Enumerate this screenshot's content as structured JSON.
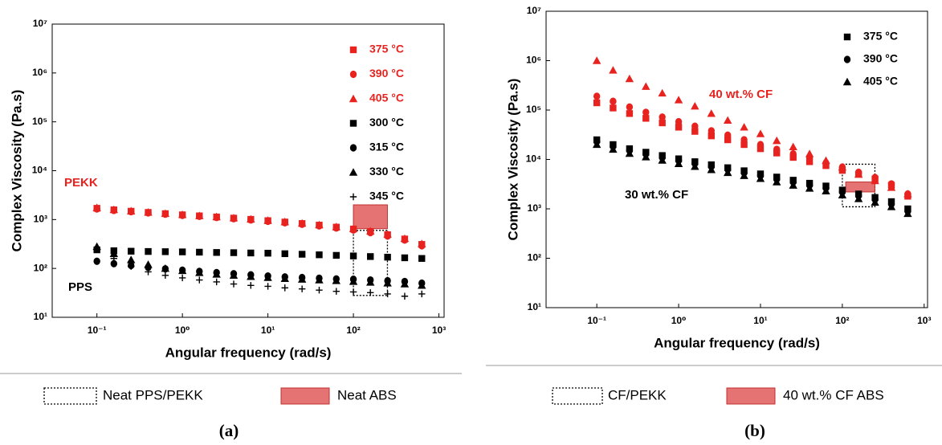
{
  "chart_data": [
    {
      "type": "scatter",
      "caption": "(a)",
      "x_label": "Angular frequency (rad/s)",
      "y_label": "Complex Viscosity (Pa.s)",
      "log_x": true,
      "log_y": true,
      "xlim": [
        0.03,
        1150
      ],
      "ylim": [
        10,
        10000000
      ],
      "xticks": [
        {
          "value": 0.1,
          "label": "10⁻¹"
        },
        {
          "value": 1,
          "label": "10⁰"
        },
        {
          "value": 10,
          "label": "10¹"
        },
        {
          "value": 100,
          "label": "10²"
        },
        {
          "value": 1000,
          "label": "10³"
        }
      ],
      "yticks": [
        {
          "value": 10,
          "label": "10¹"
        },
        {
          "value": 100,
          "label": "10²"
        },
        {
          "value": 1000,
          "label": "10³"
        },
        {
          "value": 10000,
          "label": "10⁴"
        },
        {
          "value": 100000,
          "label": "10⁵"
        },
        {
          "value": 1000000,
          "label": "10⁶"
        },
        {
          "value": 10000000,
          "label": "10⁷"
        }
      ],
      "x": [
        0.1,
        0.158,
        0.251,
        0.398,
        0.631,
        1,
        1.58,
        2.51,
        3.98,
        6.31,
        10,
        15.8,
        25.1,
        39.8,
        63.1,
        100,
        158,
        251,
        398,
        631
      ],
      "legend": "upper right",
      "series": [
        {
          "name": "375 °C",
          "color": "#e8231f",
          "marker": "square",
          "values": [
            1700,
            1580,
            1480,
            1400,
            1320,
            1250,
            1190,
            1130,
            1070,
            1010,
            950,
            890,
            830,
            770,
            700,
            640,
            570,
            490,
            400,
            310
          ]
        },
        {
          "name": "390 °C",
          "color": "#e8231f",
          "marker": "circle",
          "values": [
            1650,
            1540,
            1450,
            1370,
            1290,
            1220,
            1160,
            1100,
            1040,
            980,
            920,
            860,
            800,
            740,
            670,
            610,
            540,
            460,
            380,
            290
          ]
        },
        {
          "name": "405 °C",
          "color": "#e8231f",
          "marker": "triangle",
          "values": [
            1750,
            1600,
            1500,
            1410,
            1330,
            1260,
            1200,
            1140,
            1080,
            1020,
            960,
            900,
            840,
            780,
            710,
            650,
            580,
            500,
            410,
            320
          ]
        },
        {
          "name": "300 °C",
          "color": "#000000",
          "marker": "square",
          "values": [
            240,
            230,
            225,
            222,
            220,
            218,
            215,
            212,
            210,
            207,
            205,
            200,
            195,
            190,
            185,
            180,
            175,
            170,
            165,
            160
          ]
        },
        {
          "name": "315 °C",
          "color": "#000000",
          "marker": "circle",
          "values": [
            140,
            125,
            115,
            105,
            98,
            92,
            87,
            82,
            78,
            74,
            70,
            67,
            65,
            63,
            61,
            60,
            58,
            56,
            54,
            50
          ]
        },
        {
          "name": "330 °C",
          "color": "#000000",
          "marker": "triangle",
          "values": [
            280,
            200,
            150,
            120,
            100,
            90,
            82,
            76,
            72,
            68,
            65,
            62,
            60,
            58,
            56,
            54,
            52,
            50,
            48,
            45
          ]
        },
        {
          "name": "345 °C",
          "color": "#000000",
          "marker": "plus",
          "values": [
            250,
            160,
            110,
            85,
            72,
            64,
            58,
            53,
            48,
            45,
            43,
            40,
            38,
            36,
            34,
            33,
            32,
            30,
            27,
            30
          ]
        }
      ],
      "annotations": [
        {
          "text": "PEKK",
          "color": "#e8231f"
        },
        {
          "text": "PPS",
          "color": "#000000"
        }
      ],
      "regions": [
        {
          "label": "Neat PPS/PEKK",
          "style": "dotted",
          "color": "#000000",
          "x": [
            100,
            250
          ],
          "y": [
            28,
            600
          ]
        },
        {
          "label": "Neat ABS",
          "style": "filled",
          "color": "#e05a5a",
          "x": [
            100,
            250
          ],
          "y": [
            650,
            2000
          ]
        }
      ]
    },
    {
      "type": "scatter",
      "caption": "(b)",
      "x_label": "Angular frequency (rad/s)",
      "y_label": "Complex Viscosity (Pa.s)",
      "log_x": true,
      "log_y": true,
      "xlim": [
        0.024,
        1100
      ],
      "ylim": [
        10,
        10000000
      ],
      "xticks": [
        {
          "value": 0.1,
          "label": "10⁻¹"
        },
        {
          "value": 1,
          "label": "10⁰"
        },
        {
          "value": 10,
          "label": "10¹"
        },
        {
          "value": 100,
          "label": "10²"
        },
        {
          "value": 1000,
          "label": "10³"
        }
      ],
      "yticks": [
        {
          "value": 10,
          "label": "10¹"
        },
        {
          "value": 100,
          "label": "10²"
        },
        {
          "value": 1000,
          "label": "10³"
        },
        {
          "value": 10000,
          "label": "10⁴"
        },
        {
          "value": 100000,
          "label": "10⁵"
        },
        {
          "value": 1000000,
          "label": "10⁶"
        },
        {
          "value": 10000000,
          "label": "10⁷"
        }
      ],
      "x": [
        0.1,
        0.158,
        0.251,
        0.398,
        0.631,
        1,
        1.58,
        2.51,
        3.98,
        6.31,
        10,
        15.8,
        25.1,
        39.8,
        63.1,
        100,
        158,
        251,
        398,
        631
      ],
      "legend": "upper right",
      "series": [
        {
          "name": "375 °C",
          "color": "#000000",
          "marker": "square",
          "values": [
            25000,
            20000,
            16500,
            14000,
            12000,
            10300,
            9000,
            7800,
            6800,
            5900,
            5100,
            4400,
            3800,
            3300,
            2900,
            2400,
            2000,
            1700,
            1400,
            1000
          ]
        },
        {
          "name": "390 °C",
          "color": "#000000",
          "marker": "circle",
          "values": [
            23000,
            18400,
            15200,
            12900,
            11000,
            9500,
            8300,
            7200,
            6300,
            5400,
            4700,
            4000,
            3500,
            3000,
            2650,
            2200,
            1850,
            1550,
            1250,
            900
          ]
        },
        {
          "name": "405 °C",
          "color": "#000000",
          "marker": "triangle",
          "values": [
            20000,
            16000,
            13200,
            11200,
            9600,
            8200,
            7200,
            6200,
            5400,
            4700,
            4100,
            3500,
            3000,
            2600,
            2300,
            1900,
            1600,
            1350,
            1100,
            800
          ]
        },
        {
          "color": "#e8231f",
          "marker": "square",
          "values": [
            140000,
            110000,
            85000,
            68000,
            55000,
            45000,
            37000,
            30000,
            25000,
            20000,
            16500,
            13500,
            11000,
            9000,
            7500,
            6000,
            5000,
            4000,
            3000,
            1800
          ]
        },
        {
          "color": "#e8231f",
          "marker": "circle",
          "values": [
            190000,
            150000,
            115000,
            90000,
            72000,
            58000,
            47000,
            38000,
            31000,
            25000,
            20000,
            16000,
            13000,
            10500,
            8500,
            7000,
            5500,
            4300,
            3200,
            2000
          ]
        },
        {
          "color": "#e8231f",
          "marker": "triangle",
          "values": [
            1000000,
            640000,
            430000,
            300000,
            220000,
            160000,
            120000,
            85000,
            62000,
            45000,
            33000,
            24000,
            18000,
            13000,
            9500,
            7000,
            5000,
            3700,
            2700,
            2000
          ]
        }
      ],
      "annotations": [
        {
          "text": "40 wt.% CF",
          "color": "#e8231f"
        },
        {
          "text": "30 wt.% CF",
          "color": "#000000"
        }
      ],
      "regions": [
        {
          "label": "CF/PEKK",
          "style": "dotted",
          "color": "#000000",
          "x": [
            100,
            250
          ],
          "y": [
            1100,
            8000
          ]
        },
        {
          "label": "40 wt.% CF ABS",
          "style": "filled",
          "color": "#e05a5a",
          "x": [
            110,
            250
          ],
          "y": [
            2200,
            3500
          ]
        }
      ]
    }
  ]
}
